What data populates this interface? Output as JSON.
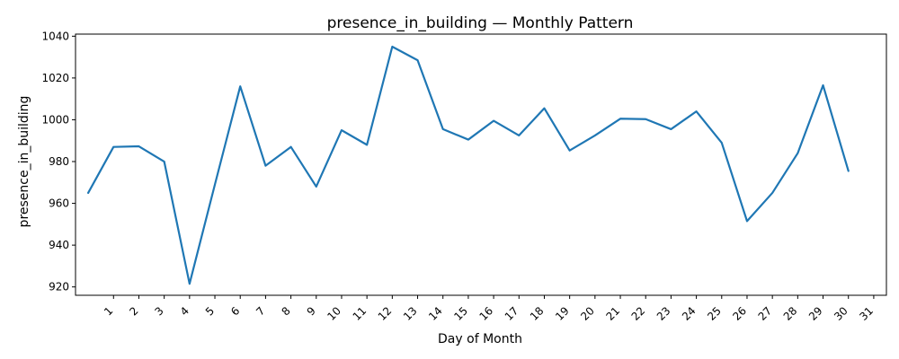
{
  "chart_data": {
    "type": "line",
    "title": "presence_in_building — Monthly Pattern",
    "xlabel": "Day of Month",
    "ylabel": "presence_in_building",
    "x_ticks": [
      "1",
      "2",
      "3",
      "4",
      "5",
      "6",
      "7",
      "8",
      "9",
      "10",
      "11",
      "12",
      "13",
      "14",
      "15",
      "16",
      "17",
      "18",
      "19",
      "20",
      "21",
      "22",
      "23",
      "24",
      "25",
      "26",
      "27",
      "28",
      "29",
      "30",
      "31"
    ],
    "y_ticks": [
      "920",
      "940",
      "960",
      "980",
      "1000",
      "1020",
      "1040"
    ],
    "xlim": [
      -0.5,
      31.5
    ],
    "ylim": [
      916,
      1041
    ],
    "series": [
      {
        "color": "#1f77b4",
        "x": [
          0,
          1,
          2,
          3,
          4,
          5,
          6,
          7,
          8,
          9,
          10,
          11,
          12,
          13,
          14,
          15,
          16,
          17,
          18,
          19,
          20,
          21,
          22,
          23,
          24,
          25,
          26,
          27,
          28,
          29,
          30
        ],
        "y": [
          965,
          987,
          987.3,
          980,
          921.5,
          969,
          1016,
          978,
          987,
          968,
          995,
          988,
          1035,
          1028.5,
          995.5,
          990.5,
          999.5,
          992.5,
          1005.5,
          985.3,
          992.5,
          1000.5,
          1000.3,
          995.5,
          1004,
          989,
          951.5,
          965,
          984,
          1016.5,
          975.5
        ]
      }
    ],
    "grid": false,
    "legend": "none"
  }
}
